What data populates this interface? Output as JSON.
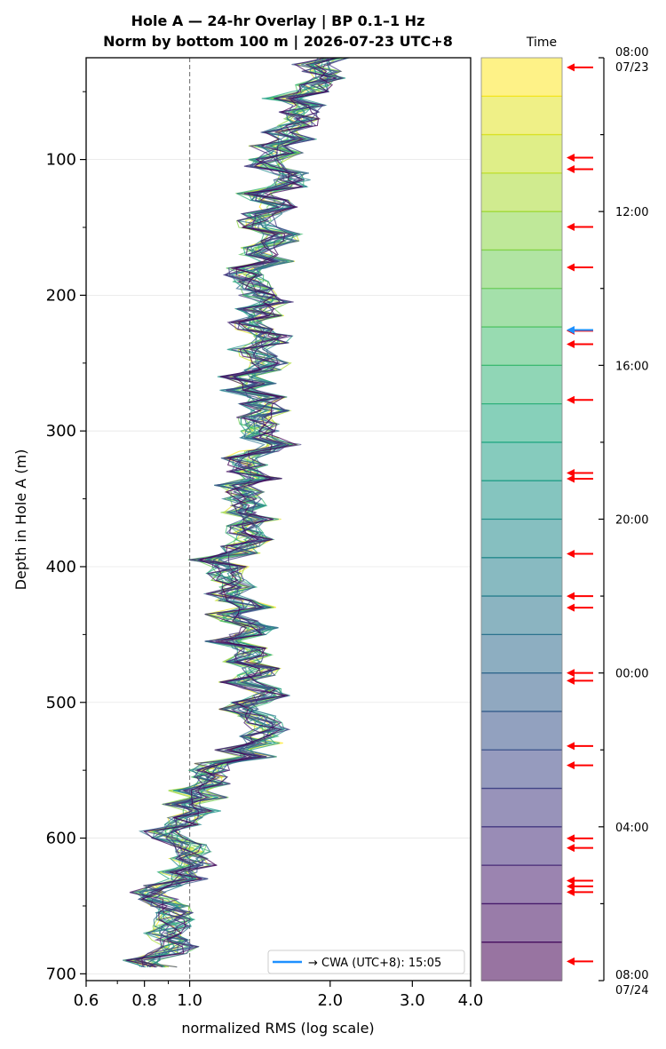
{
  "chart_data": {
    "type": "line",
    "title_line1": "Hole A — 24-hr Overlay  |  BP 0.1–1 Hz",
    "title_line2": "Norm by bottom 100 m  |  2026-07-23 UTC+8",
    "xlabel": "normalized RMS  (log scale)",
    "ylabel": "Depth in Hole A (m)",
    "x_scale": "log",
    "xlim": [
      0.6,
      4.0
    ],
    "ylim": [
      705,
      25
    ],
    "x_ticks": [
      0.6,
      0.8,
      1.0,
      2.0,
      3.0,
      4.0
    ],
    "x_tick_labels": [
      "0.6",
      "0.8",
      "1.0",
      "2.0",
      "3.0",
      "4.0"
    ],
    "y_ticks": [
      100,
      200,
      300,
      400,
      500,
      600,
      700
    ],
    "y_tick_labels": [
      "100",
      "200",
      "300",
      "400",
      "500",
      "600",
      "700"
    ],
    "reference_line_x": 1.0,
    "grid": "horizontal at major depth ticks",
    "depth_step_m": 5,
    "depth_range_m": [
      25,
      695
    ],
    "n_series": 24,
    "colormap": "viridis",
    "profile_trend": [
      {
        "depth": 25,
        "x": 1.95
      },
      {
        "depth": 60,
        "x": 1.65
      },
      {
        "depth": 100,
        "x": 1.55
      },
      {
        "depth": 150,
        "x": 1.45
      },
      {
        "depth": 200,
        "x": 1.4
      },
      {
        "depth": 260,
        "x": 1.38
      },
      {
        "depth": 300,
        "x": 1.45
      },
      {
        "depth": 360,
        "x": 1.35
      },
      {
        "depth": 400,
        "x": 1.2
      },
      {
        "depth": 450,
        "x": 1.3
      },
      {
        "depth": 500,
        "x": 1.35
      },
      {
        "depth": 530,
        "x": 1.4
      },
      {
        "depth": 560,
        "x": 1.05
      },
      {
        "depth": 600,
        "x": 0.95
      },
      {
        "depth": 650,
        "x": 0.9
      },
      {
        "depth": 695,
        "x": 0.85
      }
    ],
    "legend": {
      "label": "→ CWA (UTC+8): 15:05",
      "color": "#1e90ff",
      "position": "lower-right"
    }
  },
  "time_bar": {
    "title": "Time",
    "start_label_time": "08:00",
    "start_label_date": "07/23",
    "end_label_time": "08:00",
    "end_label_date": "07/24",
    "tick_hours": [
      0,
      4,
      8,
      12,
      16,
      20,
      24
    ],
    "tick_labels": [
      "08:00\n07/23",
      "12:00",
      "16:00",
      "20:00",
      "00:00",
      "04:00",
      "08:00\n07/24"
    ],
    "bands": 24,
    "event_arrows_hours": [
      0.25,
      2.6,
      2.9,
      4.4,
      5.45,
      7.1,
      7.45,
      8.9,
      10.8,
      10.95,
      12.9,
      14.0,
      14.3,
      16.0,
      16.2,
      17.9,
      18.4,
      20.3,
      20.55,
      21.4,
      21.55,
      21.7,
      23.5
    ],
    "event_arrow_color": "#ff0000",
    "highlight_arrow_hours": 7.08,
    "highlight_arrow_color": "#1e90ff"
  },
  "colors": {
    "reference_line": "#808080",
    "grid": "#e6e6e6",
    "axis": "#000000"
  }
}
